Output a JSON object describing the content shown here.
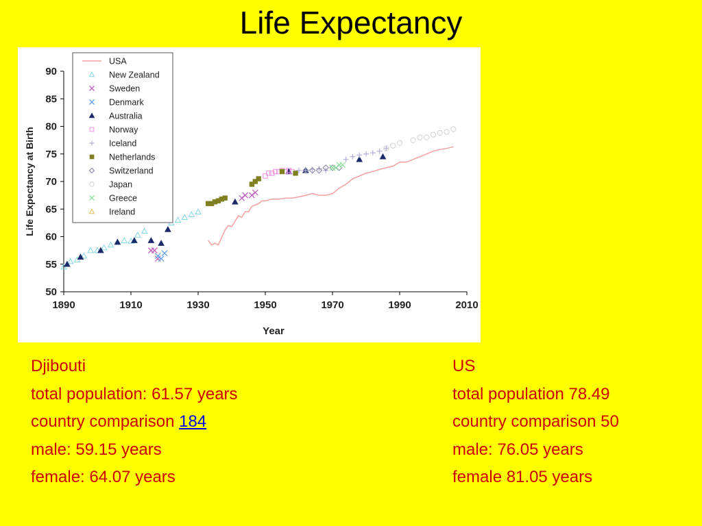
{
  "slide": {
    "title": "Life Expectancy"
  },
  "chart_data": {
    "type": "scatter",
    "title": "",
    "xlabel": "Year",
    "ylabel": "Life Expectancy at Birth",
    "xlim": [
      1890,
      2010
    ],
    "ylim": [
      50,
      90
    ],
    "x_ticks": [
      1890,
      1910,
      1930,
      1950,
      1970,
      1990,
      2010
    ],
    "y_ticks": [
      50,
      55,
      60,
      65,
      70,
      75,
      80,
      85,
      90
    ],
    "grid": false,
    "legend_position": "top-left",
    "series": [
      {
        "name": "USA",
        "marker": "line",
        "color": "#f4a0a0",
        "x": [
          1933,
          1934,
          1935,
          1936,
          1937,
          1938,
          1939,
          1940,
          1941,
          1942,
          1943,
          1944,
          1945,
          1946,
          1947,
          1948,
          1949,
          1950,
          1952,
          1954,
          1956,
          1958,
          1960,
          1962,
          1964,
          1966,
          1968,
          1970,
          1972,
          1974,
          1976,
          1978,
          1980,
          1982,
          1984,
          1986,
          1988,
          1990,
          1992,
          1994,
          1996,
          1998,
          2000,
          2002,
          2004,
          2006
        ],
        "y": [
          59.3,
          58.5,
          58.8,
          58.5,
          59.8,
          61.2,
          62.0,
          61.8,
          62.8,
          63.8,
          63.5,
          64.5,
          64.5,
          65.5,
          65.7,
          66.0,
          66.5,
          66.5,
          66.8,
          66.8,
          67.0,
          67.0,
          67.2,
          67.5,
          67.8,
          67.5,
          67.5,
          67.8,
          68.8,
          69.5,
          70.5,
          71.0,
          71.5,
          71.8,
          72.2,
          72.5,
          72.8,
          73.5,
          73.5,
          74.0,
          74.5,
          75.0,
          75.5,
          75.8,
          76.0,
          76.3
        ]
      },
      {
        "name": "New Zealand",
        "marker": "triangle-open",
        "color": "#80d8e0",
        "x": [
          1890,
          1892,
          1894,
          1896,
          1898,
          1900,
          1902,
          1904,
          1906,
          1908,
          1910,
          1912,
          1914,
          1922,
          1924,
          1926,
          1928,
          1930
        ],
        "y": [
          54.5,
          55.5,
          55.8,
          56.5,
          57.5,
          57.5,
          58.0,
          58.5,
          59.0,
          59.3,
          59.2,
          60.3,
          61.0,
          62.5,
          63.0,
          63.5,
          64.0,
          64.5
        ]
      },
      {
        "name": "Sweden",
        "marker": "x",
        "color": "#c060c0",
        "x": [
          1916,
          1917,
          1918,
          1943,
          1944,
          1946,
          1947
        ],
        "y": [
          57.5,
          57.5,
          56.0,
          67.0,
          67.5,
          67.5,
          68.0
        ]
      },
      {
        "name": "Denmark",
        "marker": "x",
        "color": "#60a0e0",
        "x": [
          1918,
          1919,
          1920
        ],
        "y": [
          56.5,
          56.0,
          57.0
        ]
      },
      {
        "name": "Australia",
        "marker": "triangle",
        "color": "#1a2a6a",
        "x": [
          1891,
          1895,
          1901,
          1906,
          1911,
          1916,
          1919,
          1921,
          1941,
          1957,
          1962,
          1978,
          1985
        ],
        "y": [
          55.0,
          56.3,
          57.5,
          59.0,
          59.3,
          59.3,
          58.8,
          61.3,
          66.3,
          71.8,
          72.0,
          74.0,
          74.5
        ]
      },
      {
        "name": "Norway",
        "marker": "square-open",
        "color": "#f090e0",
        "x": [
          1950,
          1951,
          1952,
          1953,
          1954,
          1955,
          1956,
          1957,
          1958
        ],
        "y": [
          71.0,
          71.5,
          71.5,
          71.8,
          71.8,
          72.0,
          71.8,
          72.0,
          71.8
        ]
      },
      {
        "name": "Iceland",
        "marker": "plus",
        "color": "#b0b0d8",
        "x": [
          1960,
          1962,
          1964,
          1966,
          1968,
          1974,
          1976,
          1978,
          1980,
          1982,
          1984,
          1986
        ],
        "y": [
          72.0,
          72.0,
          72.2,
          72.3,
          72.0,
          74.0,
          74.5,
          74.8,
          75.0,
          75.2,
          75.5,
          76.0
        ]
      },
      {
        "name": "Netherlands",
        "marker": "square",
        "color": "#808020",
        "x": [
          1933,
          1934,
          1935,
          1936,
          1937,
          1938,
          1946,
          1947,
          1948,
          1955,
          1959
        ],
        "y": [
          66.0,
          66.0,
          66.3,
          66.5,
          66.8,
          67.0,
          69.5,
          70.0,
          70.5,
          71.8,
          71.5
        ]
      },
      {
        "name": "Switzerland",
        "marker": "diamond-open",
        "color": "#8080a0",
        "x": [
          1962,
          1964,
          1966,
          1968,
          1970,
          1972
        ],
        "y": [
          72.0,
          72.0,
          72.0,
          72.5,
          72.5,
          72.5
        ]
      },
      {
        "name": "Japan",
        "marker": "circle-open",
        "color": "#d0d0d0",
        "x": [
          1986,
          1988,
          1990,
          1994,
          1996,
          1998,
          2000,
          2002,
          2004,
          2006
        ],
        "y": [
          76.0,
          76.5,
          77.0,
          77.5,
          78.0,
          78.0,
          78.5,
          78.8,
          79.0,
          79.5
        ]
      },
      {
        "name": "Greece",
        "marker": "x",
        "color": "#90e0a0",
        "x": [
          1970,
          1971,
          1972,
          1973
        ],
        "y": [
          72.5,
          72.5,
          73.0,
          73.0
        ]
      },
      {
        "name": "Ireland",
        "marker": "triangle-open",
        "color": "#e8c050",
        "x": [],
        "y": []
      }
    ]
  },
  "info": {
    "left": {
      "country": "Djibouti",
      "total": "total population: 61.57 years",
      "comparison_prefix": "country comparison ",
      "comparison_link": "184 ",
      "male": "male: 59.15 years",
      "female": "female: 64.07 years"
    },
    "right": {
      "country": "US",
      "total": "total population 78.49",
      "comparison": "country comparison 50",
      "male": "male: 76.05 years",
      "female": "female 81.05 years"
    }
  }
}
